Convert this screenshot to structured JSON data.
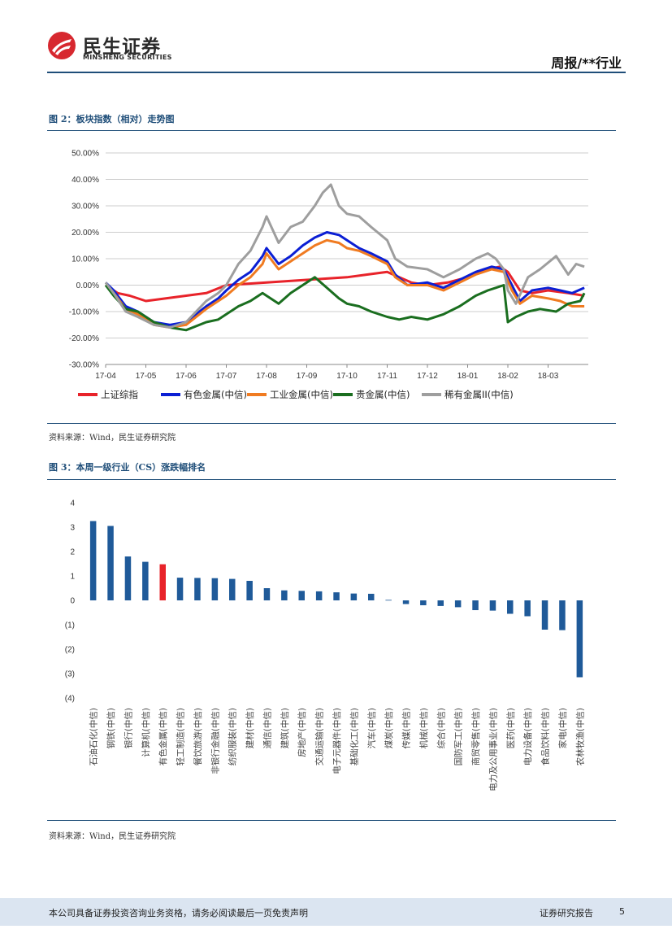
{
  "header": {
    "brand_cn": "民生证券",
    "brand_en": "MINSHENG SECURITIES",
    "report_type": "周报/**行业"
  },
  "figure2": {
    "title": "图 2：板块指数（相对）走势图",
    "source": "资料来源：Wind，民生证券研究院"
  },
  "figure3": {
    "title": "图 3：本周一级行业（CS）涨跌幅排名",
    "source": "资料来源：Wind，民生证券研究院"
  },
  "footer": {
    "disclaimer": "本公司具备证券投资咨询业务资格，请务必阅读最后一页免责声明",
    "label": "证券研究报告",
    "page": "5"
  },
  "colors": {
    "navy": "#1f4e79",
    "bar_blue": "#1f5a99",
    "bar_red": "#e8232a",
    "logo_red": "#d7282f"
  },
  "chart_data": [
    {
      "type": "line",
      "title": "图 2：板块指数（相对）走势图",
      "x_ticks": [
        "17-04",
        "17-05",
        "17-06",
        "17-07",
        "17-08",
        "17-09",
        "17-10",
        "17-11",
        "17-12",
        "18-01",
        "18-02",
        "18-03"
      ],
      "y_ticks": [
        "50.00%",
        "40.00%",
        "30.00%",
        "20.00%",
        "10.00%",
        "0.00%",
        "-10.00%",
        "-20.00%",
        "-30.00%"
      ],
      "ylim": [
        -30,
        50
      ],
      "xlim": [
        0,
        12
      ],
      "legend_position": "bottom",
      "series": [
        {
          "name": "上证综指",
          "color": "#e8232a",
          "points": [
            [
              0,
              0
            ],
            [
              0.3,
              -3
            ],
            [
              0.6,
              -4
            ],
            [
              1,
              -6
            ],
            [
              1.5,
              -5
            ],
            [
              2,
              -4
            ],
            [
              2.5,
              -3
            ],
            [
              3,
              0
            ],
            [
              3.5,
              0.5
            ],
            [
              4,
              1
            ],
            [
              4.5,
              1.5
            ],
            [
              5,
              2
            ],
            [
              5.5,
              2.5
            ],
            [
              6,
              3
            ],
            [
              6.5,
              4
            ],
            [
              7,
              5
            ],
            [
              7.3,
              3
            ],
            [
              7.6,
              1
            ],
            [
              8,
              0
            ],
            [
              8.5,
              1
            ],
            [
              9,
              3
            ],
            [
              9.5,
              6
            ],
            [
              9.8,
              7
            ],
            [
              10,
              5
            ],
            [
              10.3,
              -2
            ],
            [
              10.6,
              -3
            ],
            [
              11,
              -2
            ],
            [
              11.5,
              -3
            ],
            [
              11.9,
              -4
            ]
          ]
        },
        {
          "name": "有色金属(中信)",
          "color": "#0b1fd4",
          "points": [
            [
              0,
              1
            ],
            [
              0.2,
              -2
            ],
            [
              0.5,
              -8
            ],
            [
              0.8,
              -10
            ],
            [
              1.2,
              -14
            ],
            [
              1.6,
              -15
            ],
            [
              2,
              -14
            ],
            [
              2.5,
              -8
            ],
            [
              2.8,
              -5
            ],
            [
              3,
              -2
            ],
            [
              3.3,
              2
            ],
            [
              3.6,
              5
            ],
            [
              3.9,
              11
            ],
            [
              4,
              14
            ],
            [
              4.3,
              8
            ],
            [
              4.6,
              11
            ],
            [
              4.9,
              15
            ],
            [
              5.2,
              18
            ],
            [
              5.5,
              20
            ],
            [
              5.8,
              19
            ],
            [
              6,
              17
            ],
            [
              6.3,
              14
            ],
            [
              6.6,
              12
            ],
            [
              7,
              9
            ],
            [
              7.2,
              4
            ],
            [
              7.5,
              0
            ],
            [
              8,
              1
            ],
            [
              8.4,
              -1
            ],
            [
              8.8,
              2
            ],
            [
              9.2,
              5
            ],
            [
              9.6,
              7
            ],
            [
              9.9,
              6
            ],
            [
              10.1,
              0
            ],
            [
              10.3,
              -6
            ],
            [
              10.6,
              -2
            ],
            [
              11,
              -1
            ],
            [
              11.3,
              -2
            ],
            [
              11.6,
              -3
            ],
            [
              11.9,
              -1
            ]
          ]
        },
        {
          "name": "工业金属(中信)",
          "color": "#f07b21",
          "points": [
            [
              0,
              0
            ],
            [
              0.2,
              -3
            ],
            [
              0.5,
              -9
            ],
            [
              0.8,
              -11
            ],
            [
              1.2,
              -15
            ],
            [
              1.6,
              -16
            ],
            [
              2,
              -15
            ],
            [
              2.5,
              -9
            ],
            [
              2.8,
              -6
            ],
            [
              3,
              -4
            ],
            [
              3.3,
              0
            ],
            [
              3.6,
              3
            ],
            [
              3.9,
              8
            ],
            [
              4,
              12
            ],
            [
              4.3,
              6
            ],
            [
              4.6,
              9
            ],
            [
              4.9,
              12
            ],
            [
              5.2,
              15
            ],
            [
              5.5,
              17
            ],
            [
              5.8,
              16
            ],
            [
              6,
              14
            ],
            [
              6.3,
              13
            ],
            [
              6.6,
              11
            ],
            [
              7,
              8
            ],
            [
              7.2,
              3
            ],
            [
              7.5,
              0
            ],
            [
              8,
              0
            ],
            [
              8.4,
              -2
            ],
            [
              8.8,
              1
            ],
            [
              9.2,
              4
            ],
            [
              9.6,
              6
            ],
            [
              9.9,
              5
            ],
            [
              10.1,
              -2
            ],
            [
              10.3,
              -7
            ],
            [
              10.6,
              -4
            ],
            [
              11,
              -5
            ],
            [
              11.3,
              -6
            ],
            [
              11.6,
              -8
            ],
            [
              11.9,
              -8
            ]
          ]
        },
        {
          "name": "贵金属(中信)",
          "color": "#1a6e1f",
          "points": [
            [
              0,
              0
            ],
            [
              0.2,
              -4
            ],
            [
              0.5,
              -9
            ],
            [
              0.8,
              -10
            ],
            [
              1.2,
              -14
            ],
            [
              1.6,
              -16
            ],
            [
              2,
              -17
            ],
            [
              2.5,
              -14
            ],
            [
              2.8,
              -13
            ],
            [
              3,
              -11
            ],
            [
              3.3,
              -8
            ],
            [
              3.6,
              -6
            ],
            [
              3.9,
              -3
            ],
            [
              4,
              -4
            ],
            [
              4.3,
              -7
            ],
            [
              4.6,
              -3
            ],
            [
              4.9,
              0
            ],
            [
              5.2,
              3
            ],
            [
              5.5,
              -1
            ],
            [
              5.8,
              -5
            ],
            [
              6,
              -7
            ],
            [
              6.3,
              -8
            ],
            [
              6.6,
              -10
            ],
            [
              7,
              -12
            ],
            [
              7.3,
              -13
            ],
            [
              7.6,
              -12
            ],
            [
              8,
              -13
            ],
            [
              8.4,
              -11
            ],
            [
              8.8,
              -8
            ],
            [
              9.2,
              -4
            ],
            [
              9.5,
              -2
            ],
            [
              9.7,
              -1
            ],
            [
              9.9,
              0
            ],
            [
              10,
              -14
            ],
            [
              10.2,
              -12
            ],
            [
              10.5,
              -10
            ],
            [
              10.8,
              -9
            ],
            [
              11.2,
              -10
            ],
            [
              11.5,
              -7
            ],
            [
              11.8,
              -6
            ],
            [
              11.9,
              -3
            ]
          ]
        },
        {
          "name": "稀有金属II(中信)",
          "color": "#9e9e9e",
          "points": [
            [
              0,
              1
            ],
            [
              0.2,
              -3
            ],
            [
              0.5,
              -10
            ],
            [
              0.8,
              -12
            ],
            [
              1.2,
              -15
            ],
            [
              1.6,
              -16
            ],
            [
              2,
              -14
            ],
            [
              2.5,
              -6
            ],
            [
              2.8,
              -3
            ],
            [
              3,
              0
            ],
            [
              3.3,
              8
            ],
            [
              3.6,
              13
            ],
            [
              3.9,
              22
            ],
            [
              4,
              26
            ],
            [
              4.3,
              16
            ],
            [
              4.6,
              22
            ],
            [
              4.9,
              24
            ],
            [
              5.2,
              30
            ],
            [
              5.4,
              35
            ],
            [
              5.6,
              38
            ],
            [
              5.8,
              30
            ],
            [
              6,
              27
            ],
            [
              6.3,
              26
            ],
            [
              6.6,
              22
            ],
            [
              7,
              17
            ],
            [
              7.2,
              10
            ],
            [
              7.5,
              7
            ],
            [
              8,
              6
            ],
            [
              8.4,
              3
            ],
            [
              8.8,
              6
            ],
            [
              9.2,
              10
            ],
            [
              9.5,
              12
            ],
            [
              9.7,
              10
            ],
            [
              9.9,
              6
            ],
            [
              10,
              -2
            ],
            [
              10.2,
              -7
            ],
            [
              10.5,
              3
            ],
            [
              10.8,
              6
            ],
            [
              11.2,
              11
            ],
            [
              11.5,
              4
            ],
            [
              11.7,
              8
            ],
            [
              11.9,
              7
            ]
          ]
        }
      ]
    },
    {
      "type": "bar",
      "title": "图 3：本周一级行业（CS）涨跌幅排名",
      "y_ticks": [
        "4",
        "3",
        "2",
        "1",
        "0",
        "(1)",
        "(2)",
        "(3)",
        "(4)"
      ],
      "ylim": [
        -4,
        4
      ],
      "highlight_index": 4,
      "categories": [
        "石油石化(中信)",
        "钢铁(中信)",
        "银行(中信)",
        "计算机(中信)",
        "有色金属(中信)",
        "轻工制造(中信)",
        "餐饮旅游(中信)",
        "非银行金融(中信)",
        "纺织服装(中信)",
        "建材(中信)",
        "通信(中信)",
        "建筑(中信)",
        "房地产(中信)",
        "交通运输(中信)",
        "电子元器件(中信)",
        "基础化工(中信)",
        "汽车(中信)",
        "煤炭(中信)",
        "传媒(中信)",
        "机械(中信)",
        "综合(中信)",
        "国防军工(中信)",
        "商贸零售(中信)",
        "电力及公用事业(中信)",
        "医药(中信)",
        "电力设备(中信)",
        "食品饮料(中信)",
        "家电(中信)",
        "农林牧渔(中信)"
      ],
      "values": [
        3.25,
        3.05,
        1.8,
        1.58,
        1.48,
        0.93,
        0.92,
        0.91,
        0.88,
        0.8,
        0.5,
        0.41,
        0.39,
        0.37,
        0.33,
        0.28,
        0.27,
        0.02,
        -0.15,
        -0.2,
        -0.23,
        -0.28,
        -0.4,
        -0.42,
        -0.55,
        -0.65,
        -1.2,
        -1.22,
        -3.15
      ]
    }
  ]
}
